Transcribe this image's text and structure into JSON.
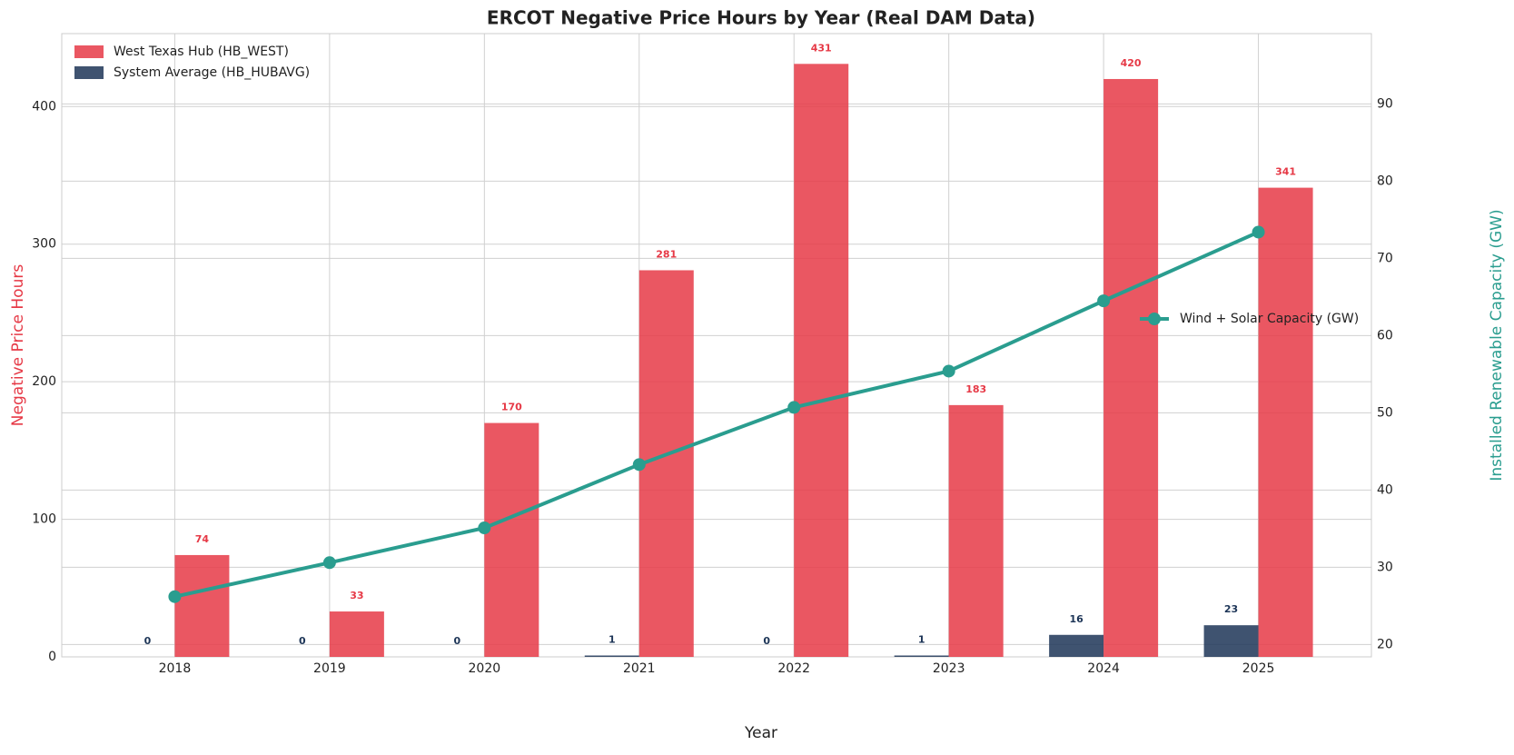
{
  "chart_data": {
    "type": "bar_line",
    "title": "ERCOT Negative Price Hours by Year (Real DAM Data)",
    "x_label": "Year",
    "y_label": "Negative Price Hours",
    "y2_label": "Installed Renewable Capacity (GW)",
    "categories": [
      "2018",
      "2019",
      "2020",
      "2021",
      "2022",
      "2023",
      "2024",
      "2025"
    ],
    "ylim": [
      0,
      453
    ],
    "yticks": [
      0,
      100,
      200,
      300,
      400
    ],
    "y2lim": [
      18.4,
      99.1
    ],
    "y2ticks": [
      20,
      30,
      40,
      50,
      60,
      70,
      80,
      90
    ],
    "grid": true,
    "legend": "upper left",
    "line_legend": "center right",
    "series": [
      {
        "name": "System Average (HB_HUBAVG)",
        "color": "#1d3557",
        "type": "bar",
        "values": [
          0,
          0,
          0,
          1,
          0,
          1,
          16,
          23
        ]
      },
      {
        "name": "West Texas Hub (HB_WEST)",
        "color": "#e63946",
        "type": "bar",
        "values": [
          74,
          33,
          170,
          281,
          431,
          183,
          420,
          341
        ]
      },
      {
        "name": "Wind + Solar Capacity (GW)",
        "color": "#2a9d8f",
        "type": "line",
        "axis": "y2",
        "values": [
          26.2,
          30.6,
          35.1,
          43.3,
          50.7,
          55.4,
          64.5,
          73.4
        ]
      }
    ]
  }
}
